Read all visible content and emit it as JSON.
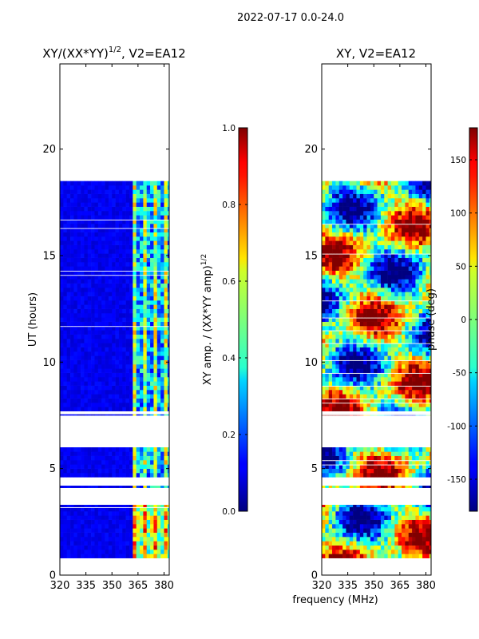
{
  "figure": {
    "suptitle": "2022-07-17 0.0-24.0",
    "xlabel": "frequency (MHz)"
  },
  "chart_data": [
    {
      "type": "heatmap",
      "title_main": "XY/(XX*YY)",
      "title_exp": "1/2",
      "title_rest": ", V2=EA12",
      "ylabel": "UT (hours)",
      "xlim": [
        320,
        383
      ],
      "ylim": [
        0,
        24
      ],
      "x_ticks": [
        320,
        335,
        350,
        365,
        380
      ],
      "y_ticks": [
        0,
        5,
        10,
        15,
        20
      ],
      "colorbar": {
        "label_main": "XY amp. / (XX*YY amp)",
        "label_exp": "1/2",
        "range": [
          0.0,
          1.0
        ],
        "ticks": [
          "0.0",
          "0.2",
          "0.4",
          "0.6",
          "0.8",
          "1.0"
        ],
        "colormap": "jet"
      },
      "data_segments": [
        {
          "t_start": 0.8,
          "t_end": 3.3
        },
        {
          "t_start": 4.1,
          "t_end": 4.2
        },
        {
          "t_start": 4.6,
          "t_end": 6.0
        },
        {
          "t_start": 7.5,
          "t_end": 7.55
        },
        {
          "t_start": 7.7,
          "t_end": 18.5
        }
      ],
      "freq_data_start": 320,
      "high_amplitude_band_mhz": [
        361,
        382
      ]
    },
    {
      "type": "heatmap",
      "title": "XY, V2=EA12",
      "ylabel": "",
      "xlim": [
        320,
        383
      ],
      "ylim": [
        0,
        24
      ],
      "x_ticks": [
        320,
        335,
        350,
        365,
        380
      ],
      "y_ticks": [
        0,
        5,
        10,
        15,
        20
      ],
      "colorbar": {
        "label": "phase (deg)",
        "range": [
          -180,
          180
        ],
        "ticks": [
          "-150",
          "-100",
          "-50",
          "0",
          "50",
          "100",
          "150"
        ],
        "colormap": "jet"
      },
      "data_segments": [
        {
          "t_start": 0.8,
          "t_end": 3.3
        },
        {
          "t_start": 4.1,
          "t_end": 4.2
        },
        {
          "t_start": 4.6,
          "t_end": 6.0
        },
        {
          "t_start": 7.5,
          "t_end": 7.55
        },
        {
          "t_start": 7.7,
          "t_end": 18.5
        }
      ],
      "freq_data_start": 320
    }
  ]
}
